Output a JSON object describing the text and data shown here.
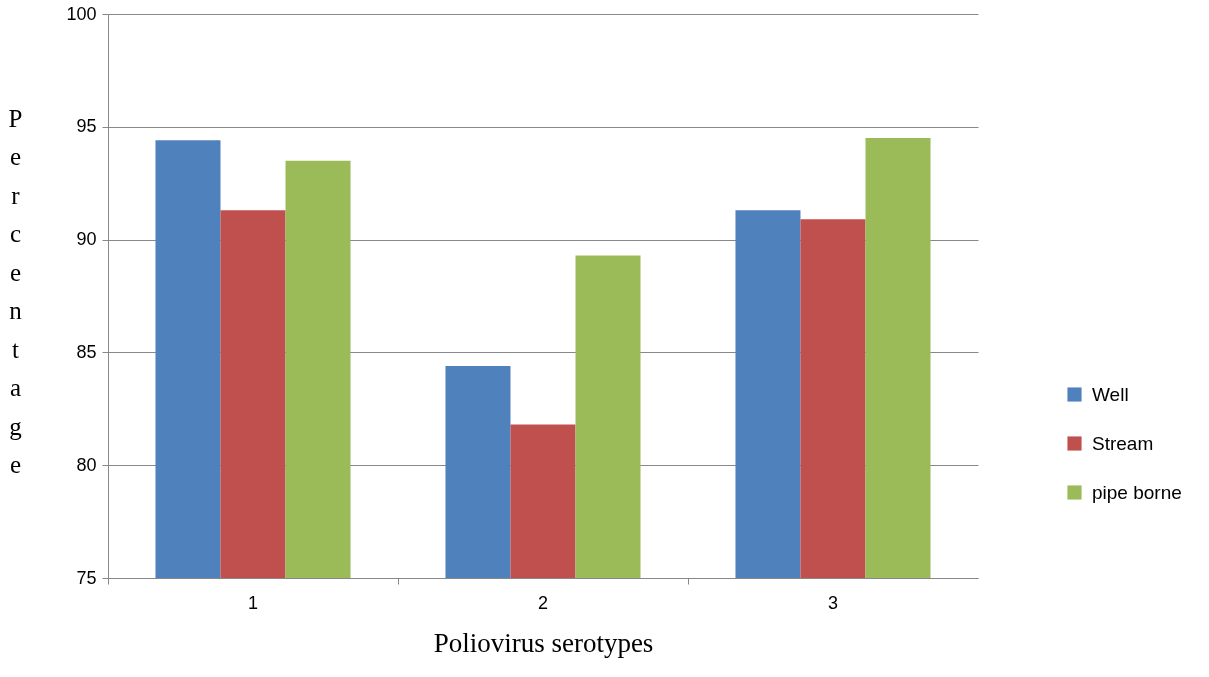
{
  "chart_data": {
    "type": "bar",
    "xlabel": "Poliovirus serotypes",
    "ylabel": "Percentage",
    "categories": [
      "1",
      "2",
      "3"
    ],
    "series": [
      {
        "name": "Well",
        "color": "#4f81bd",
        "values": [
          94.4,
          84.4,
          91.3
        ]
      },
      {
        "name": "Stream",
        "color": "#c0504d",
        "values": [
          91.3,
          81.8,
          90.9
        ]
      },
      {
        "name": "pipe borne",
        "color": "#9bbb59",
        "values": [
          93.5,
          89.3,
          94.5
        ]
      }
    ],
    "ylim": [
      75,
      100
    ],
    "yticks": [
      75,
      80,
      85,
      90,
      95,
      100
    ],
    "grid": "y",
    "legend": "right"
  }
}
